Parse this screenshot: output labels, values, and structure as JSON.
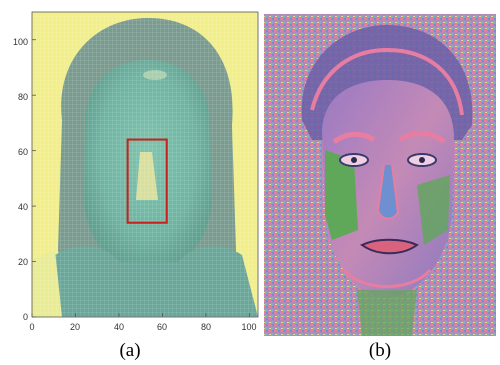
{
  "panel_a": {
    "caption": "(a)",
    "x_ticks": [
      "0",
      "20",
      "40",
      "60",
      "80",
      "100"
    ],
    "y_ticks": [
      "0",
      "20",
      "40",
      "60",
      "80",
      "100"
    ],
    "xlim": [
      0,
      104
    ],
    "ylim": [
      0,
      110
    ],
    "roi_box": {
      "x0": 44,
      "x1": 62,
      "y0": 34,
      "y1": 64
    },
    "roi_color": "#c8201d",
    "colors": {
      "background": "#f2ee8a",
      "face": "#6fb3a2",
      "grid": "#ffffff"
    }
  },
  "panel_b": {
    "caption": "(b)",
    "colors": {
      "pink": "#e87da2",
      "green": "#5fa85a",
      "purple": "#9a7ac4",
      "blue": "#6e8fd0"
    }
  }
}
